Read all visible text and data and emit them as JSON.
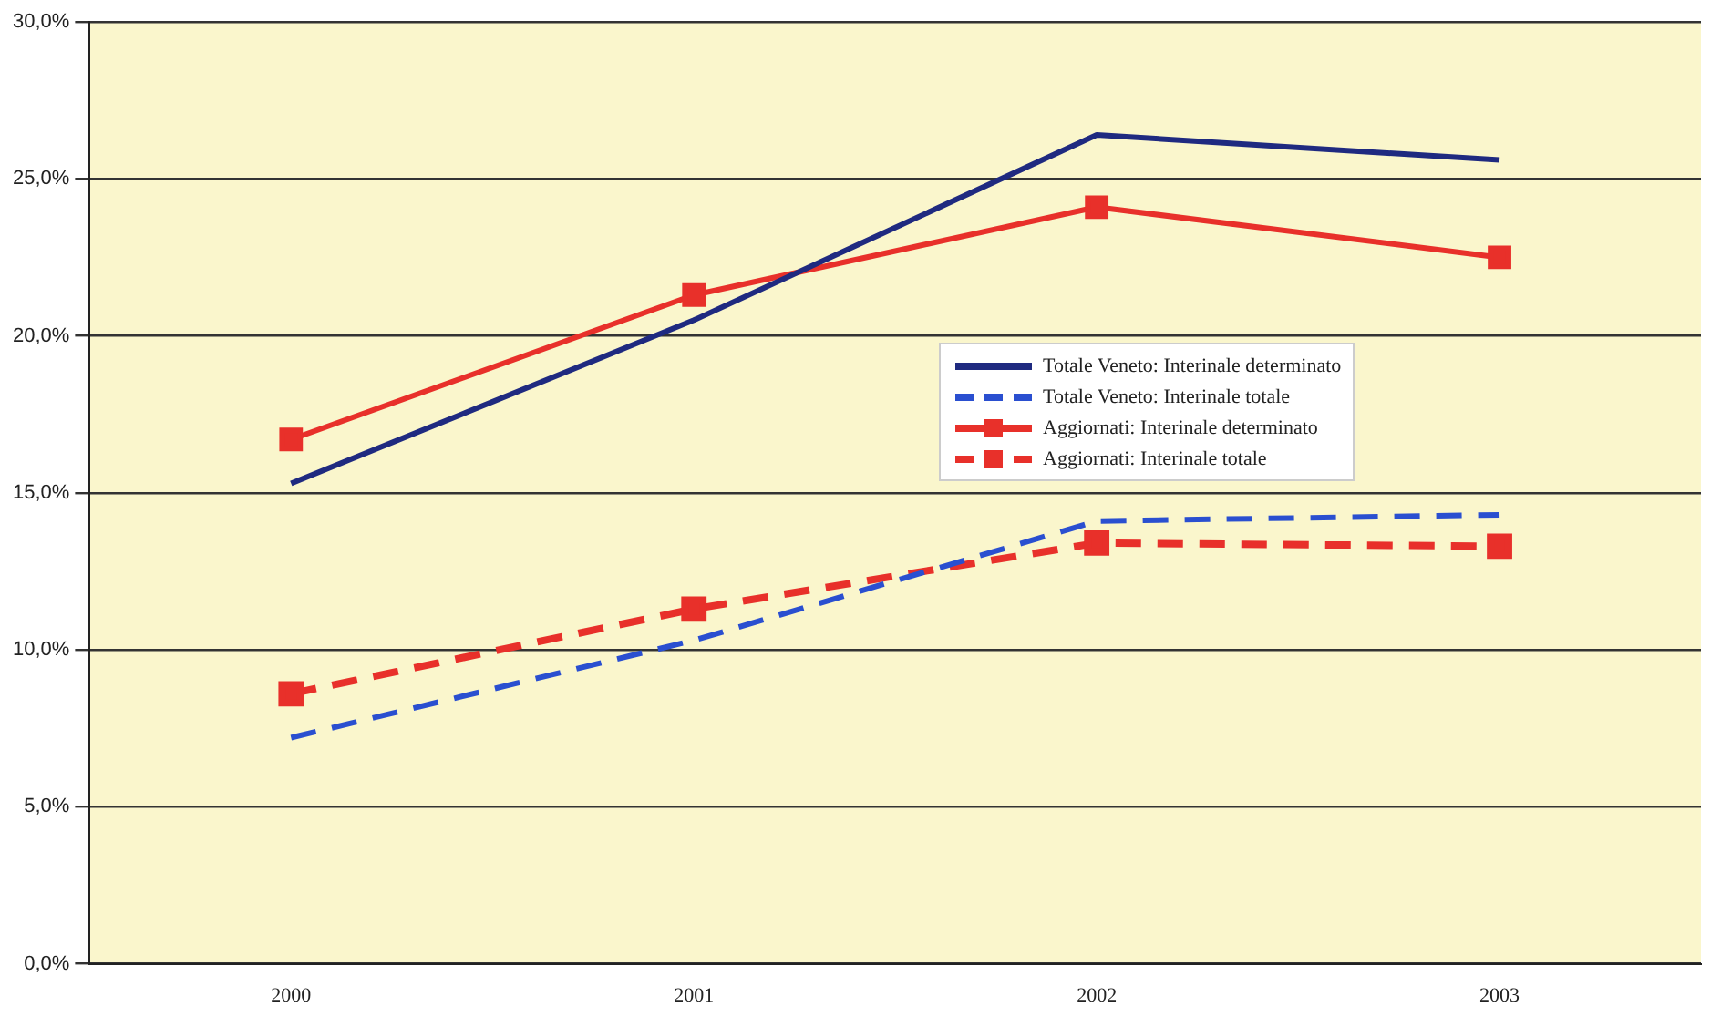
{
  "chart_data": {
    "type": "line",
    "categories": [
      "2000",
      "2001",
      "2002",
      "2003"
    ],
    "series": [
      {
        "name": "Totale Veneto: Interinale determinato",
        "color": "#1f2a80",
        "values": [
          15.3,
          20.5,
          26.4,
          25.6
        ],
        "line_style": "solid",
        "marker": "none"
      },
      {
        "name": "Totale Veneto: Interinale totale",
        "color": "#2a4fd0",
        "values": [
          7.2,
          10.3,
          14.1,
          14.3
        ],
        "line_style": "dashed",
        "marker": "none"
      },
      {
        "name": "Aggiornati: Interinale determinato",
        "color": "#e8302a",
        "values": [
          16.7,
          21.3,
          24.1,
          22.5
        ],
        "line_style": "solid",
        "marker": "square"
      },
      {
        "name": "Aggiornati: Interinale totale",
        "color": "#e8302a",
        "values": [
          8.6,
          11.3,
          13.4,
          13.3
        ],
        "line_style": "dashed",
        "marker": "square"
      }
    ],
    "ylim": [
      0,
      30
    ],
    "yticks": [
      {
        "value": 0,
        "label": "0,0%"
      },
      {
        "value": 5,
        "label": "5,0%"
      },
      {
        "value": 10,
        "label": "10,0%"
      },
      {
        "value": 15,
        "label": "15,0%"
      },
      {
        "value": 20,
        "label": "20,0%"
      },
      {
        "value": 25,
        "label": "25,0%"
      },
      {
        "value": 30,
        "label": "30,0%"
      }
    ],
    "grid": "y",
    "legend": "center"
  }
}
